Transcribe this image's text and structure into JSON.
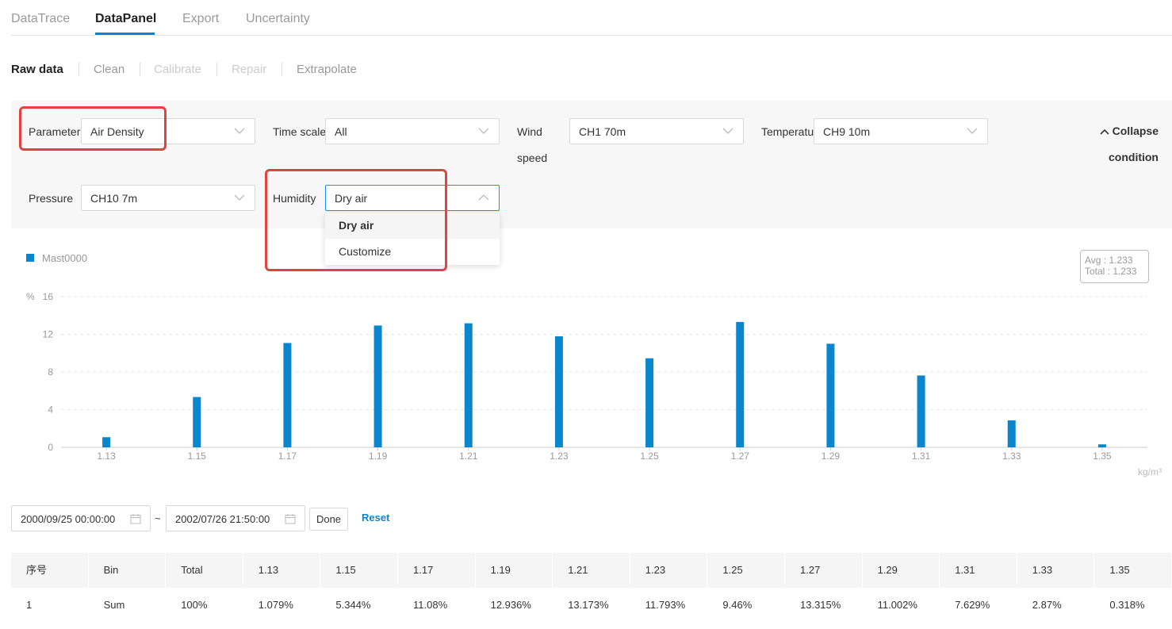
{
  "top_tabs": [
    "DataTrace",
    "DataPanel",
    "Export",
    "Uncertainty"
  ],
  "sub_tabs": [
    "Raw data",
    "Clean",
    "Calibrate",
    "Repair",
    "Extrapolate"
  ],
  "conditions": {
    "parameter": {
      "label": "Parameter",
      "value": "Air Density"
    },
    "time_scale": {
      "label": "Time scale",
      "value": "All"
    },
    "wind_speed": {
      "label_line1": "Wind",
      "label_line2": "speed",
      "value": "CH1 70m"
    },
    "temperature": {
      "label": "Temperatur",
      "value": "CH9 10m"
    },
    "pressure": {
      "label": "Pressure",
      "value": "CH10 7m"
    },
    "humidity": {
      "label": "Humidity",
      "value": "Dry air",
      "options": [
        "Dry air",
        "Customize"
      ]
    },
    "collapse_line1": "Collapse",
    "collapse_line2": "condition"
  },
  "chart_data": {
    "type": "bar",
    "series": [
      {
        "name": "Mast0000",
        "values": [
          1.079,
          5.344,
          11.08,
          12.936,
          13.173,
          11.793,
          9.46,
          13.315,
          11.002,
          7.629,
          2.87,
          0.318
        ]
      }
    ],
    "categories": [
      "1.13",
      "1.15",
      "1.17",
      "1.19",
      "1.21",
      "1.23",
      "1.25",
      "1.27",
      "1.29",
      "1.31",
      "1.33",
      "1.35"
    ],
    "y_unit": "%",
    "x_unit": "kg/m³",
    "yticks": [
      "0",
      "4",
      "8",
      "12",
      "16"
    ],
    "ylim": [
      0,
      16
    ],
    "grid": true,
    "color": "#0a86cf",
    "summary": {
      "avg": "Avg :  1.233",
      "total": "Total :  1.233"
    }
  },
  "date_range": {
    "start": "2000/09/25 00:00:00",
    "separator": "~",
    "end": "2002/07/26 21:50:00",
    "done_label": "Done",
    "reset_label": "Reset"
  },
  "table": {
    "headers": [
      "序号",
      "Bin",
      "Total",
      "1.13",
      "1.15",
      "1.17",
      "1.19",
      "1.21",
      "1.23",
      "1.25",
      "1.27",
      "1.29",
      "1.31",
      "1.33",
      "1.35"
    ],
    "rows": [
      [
        "1",
        "Sum",
        "100%",
        "1.079%",
        "5.344%",
        "11.08%",
        "12.936%",
        "13.173%",
        "11.793%",
        "9.46%",
        "13.315%",
        "11.002%",
        "7.629%",
        "2.87%",
        "0.318%"
      ]
    ]
  }
}
